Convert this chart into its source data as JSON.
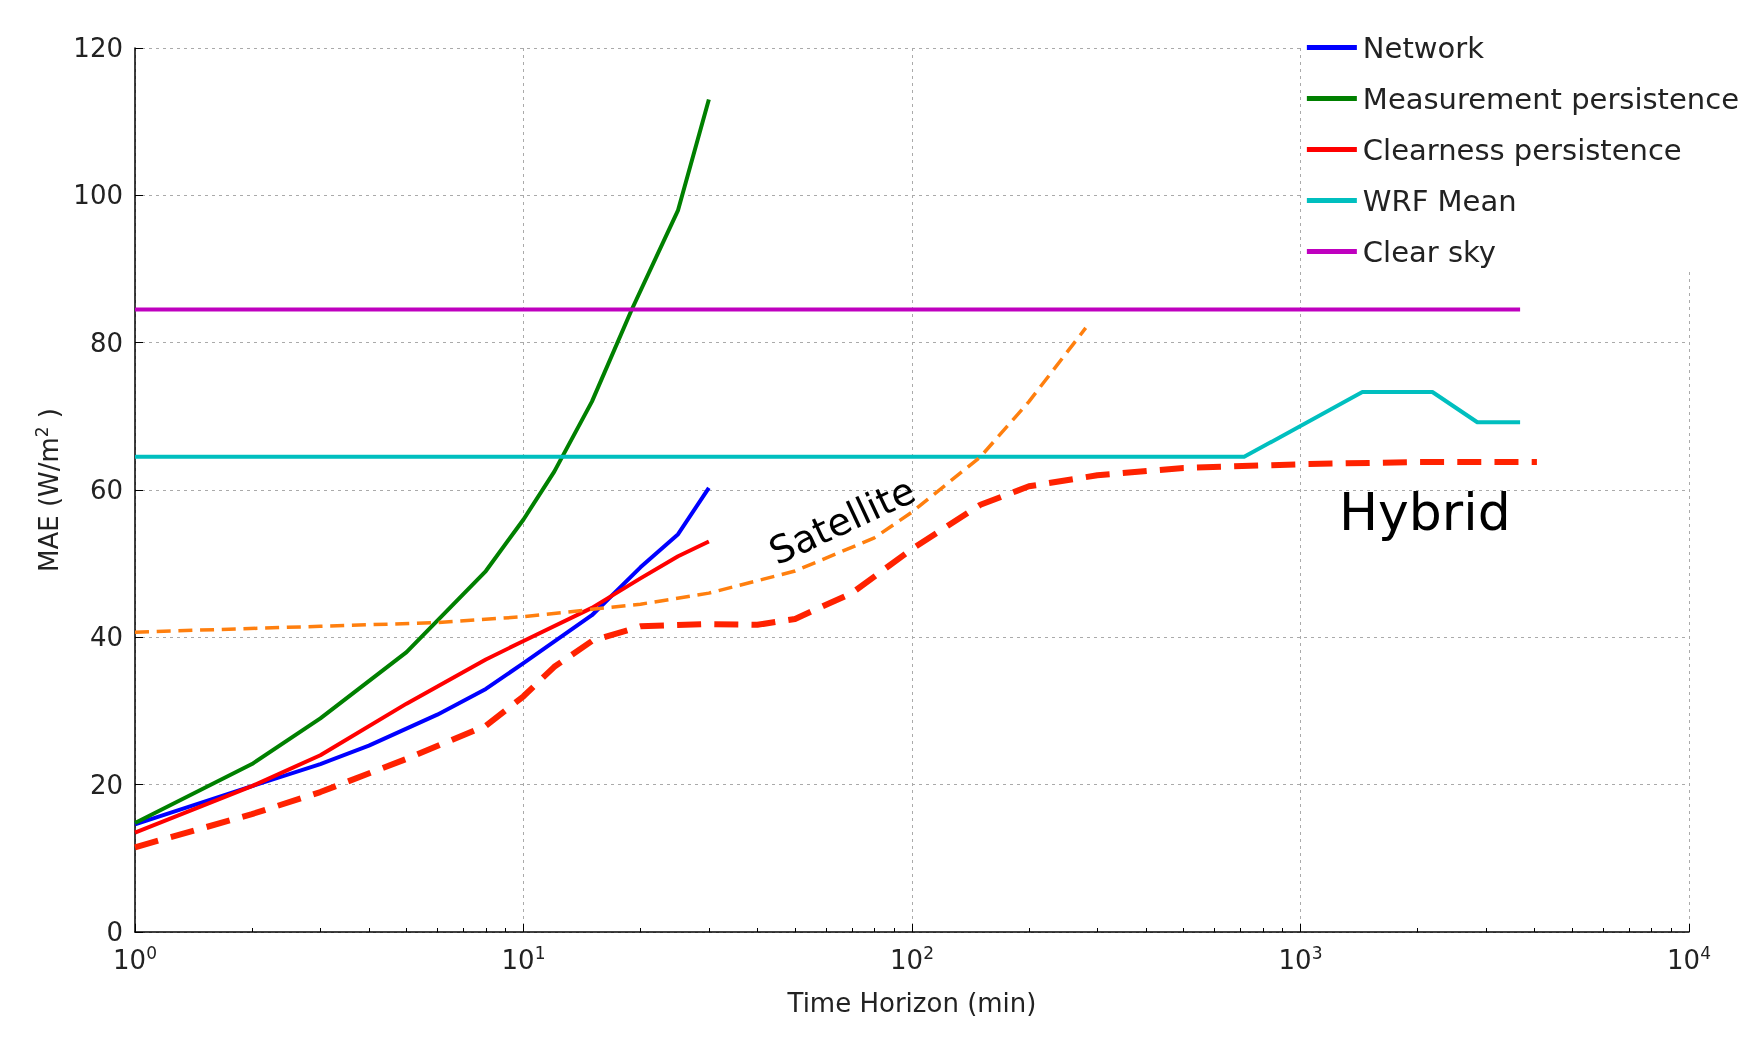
{
  "chart_data": {
    "type": "line",
    "xlabel": "Time Horizon (min)",
    "ylabel": "MAE (W/m$^{2}$ )",
    "log": "x",
    "grid": true,
    "legend": "top right",
    "marker": "none",
    "xlim": [
      1,
      10000
    ],
    "xticks": [
      {
        "value": 1,
        "label": "10$^{0}$"
      },
      {
        "value": 10,
        "label": "10$^{1}$"
      },
      {
        "value": 100,
        "label": "10$^{2}$"
      },
      {
        "value": 1000,
        "label": "10$^{3}$"
      },
      {
        "value": 10000,
        "label": "10$^{4}$"
      }
    ],
    "ylim": [
      0,
      120
    ],
    "yticks": [
      0,
      20,
      40,
      60,
      80,
      100,
      120
    ],
    "series": [
      {
        "name": "Network",
        "color": "#0000ff",
        "line_style": "solid",
        "x": [
          1,
          2,
          3,
          4,
          6,
          8,
          10,
          15,
          20,
          25,
          30
        ],
        "values": [
          14.6,
          19.8,
          22.8,
          25.3,
          29.5,
          33,
          36.5,
          43,
          49.5,
          54,
          60.3
        ]
      },
      {
        "name": "Measurement persistence",
        "color": "#008000",
        "line_style": "solid",
        "x": [
          1,
          2,
          3,
          5,
          8,
          10,
          12,
          15,
          19,
          25,
          30
        ],
        "values": [
          14.8,
          22.8,
          29,
          38,
          49,
          56,
          62.5,
          72,
          84.5,
          98,
          113
        ]
      },
      {
        "name": "Clearness persistence",
        "color": "#ff0000",
        "line_style": "solid",
        "x": [
          1,
          2,
          3,
          5,
          8,
          10,
          15,
          20,
          25,
          30
        ],
        "values": [
          13.5,
          19.8,
          24,
          31,
          37,
          39.5,
          44,
          48,
          51,
          53
        ]
      },
      {
        "name": "WRF Mean",
        "color": "#00bfbf",
        "line_style": "solid",
        "x": [
          1,
          716,
          1443,
          2185,
          2852,
          3675
        ],
        "values": [
          64.5,
          64.5,
          73.3,
          73.3,
          69.2,
          69.2
        ]
      },
      {
        "name": "Clear sky",
        "color": "#bf00bf",
        "line_style": "solid",
        "x": [
          1,
          3675
        ],
        "values": [
          84.5,
          84.5
        ]
      },
      {
        "color": "#ff7f0e",
        "line_style": "dashed",
        "x": [
          1,
          3,
          6,
          10,
          20,
          30,
          50,
          80,
          100,
          150,
          200,
          280
        ],
        "values": [
          40.7,
          41.5,
          42,
          42.8,
          44.5,
          46,
          49,
          53.5,
          57,
          64.5,
          72,
          82
        ]
      },
      {
        "color": "#ff2200",
        "line_style": "dashed",
        "x": [
          1,
          2,
          3,
          5,
          8,
          10,
          12,
          15,
          20,
          30,
          40,
          50,
          70,
          100,
          150,
          200,
          300,
          500,
          1000,
          2000,
          4060
        ],
        "values": [
          11.5,
          16,
          19,
          23.5,
          28,
          32,
          36,
          39.5,
          41.5,
          41.8,
          41.7,
          42.5,
          46,
          52,
          58,
          60.5,
          62,
          63,
          63.5,
          63.8,
          63.8
        ]
      }
    ],
    "annotations": [
      "Satellite",
      "Hybrid"
    ]
  }
}
